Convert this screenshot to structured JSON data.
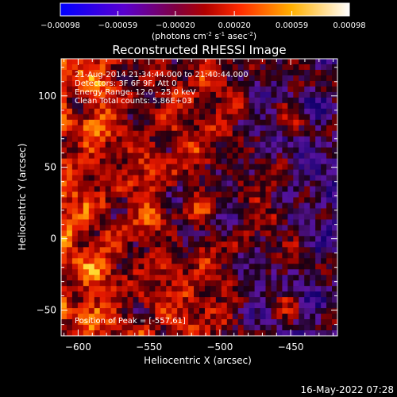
{
  "chart_data": {
    "type": "heatmap",
    "title": "Reconstructed RHESSI Image",
    "xlabel": "Heliocentric X (arcsec)",
    "ylabel": "Heliocentric Y (arcsec)",
    "xlim": [
      -612,
      -417
    ],
    "ylim": [
      -68,
      126
    ],
    "x_ticks": [
      -600,
      -550,
      -500,
      -450
    ],
    "y_ticks": [
      -50,
      0,
      50,
      100
    ],
    "grid": false,
    "colorbar": {
      "position": "top",
      "range": [
        -0.00098,
        0.00098
      ],
      "ticks": [
        "-0.00098",
        "-0.00059",
        "-0.00020",
        "0.00020",
        "0.00059",
        "0.00098"
      ],
      "ticks_values": [
        -0.00098,
        -0.00059,
        -0.0002,
        0.0002,
        0.00059,
        0.00098
      ],
      "colors": [
        "#0000ff",
        "#7a00b0",
        "#b00000",
        "#ff2a00",
        "#ffb000",
        "#ffffff"
      ]
    },
    "units_label": "(photons cm",
    "units_label_parts": [
      "(photons cm",
      "-2",
      " s",
      "-1",
      " asec",
      "-2",
      ")"
    ],
    "annotations": [
      "21-Aug-2014 21:34:44.000 to 21:40:44.000",
      "Detectors: 3F 6F 9F, Att 0",
      "Energy Range: 12.0 - 25.0 keV",
      "Clean    Total counts: 5.86E+03"
    ],
    "peak_label": "Position of Peak = [-557,61]",
    "peak": [
      -557,
      61
    ]
  },
  "footer": {
    "date": "16-May-2022 07:28"
  }
}
